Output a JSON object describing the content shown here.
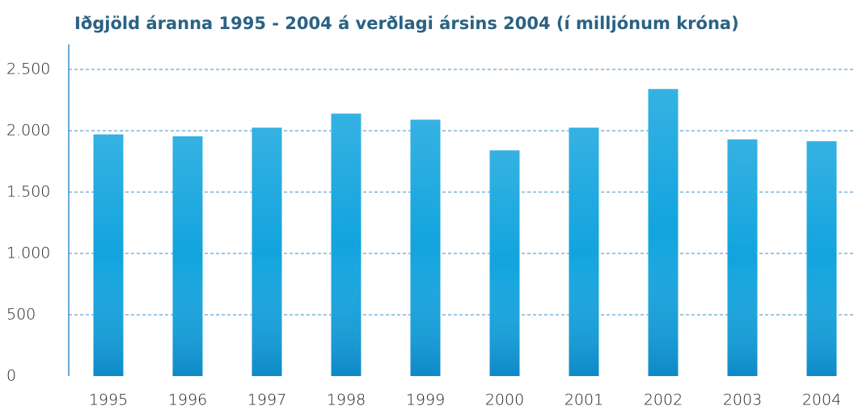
{
  "chart_data": {
    "type": "bar",
    "title": "Iðgjöld áranna 1995 - 2004 á verðlagi ársins 2004 (í milljónum króna)",
    "categories": [
      "1995",
      "1996",
      "1997",
      "1998",
      "1999",
      "2000",
      "2001",
      "2002",
      "2003",
      "2004"
    ],
    "values": [
      1970,
      1955,
      2025,
      2140,
      2090,
      1840,
      2025,
      2340,
      1930,
      1915
    ],
    "color": "#12a4de",
    "ylim": [
      0,
      2500
    ],
    "yticks": [
      0,
      500,
      {
        "value": 1000,
        "label": "1.000"
      },
      {
        "value": 1500,
        "label": "1.500"
      },
      {
        "value": 2000,
        "label": "2.000"
      },
      {
        "value": 2500,
        "label": "2.500"
      }
    ],
    "grid": true
  }
}
